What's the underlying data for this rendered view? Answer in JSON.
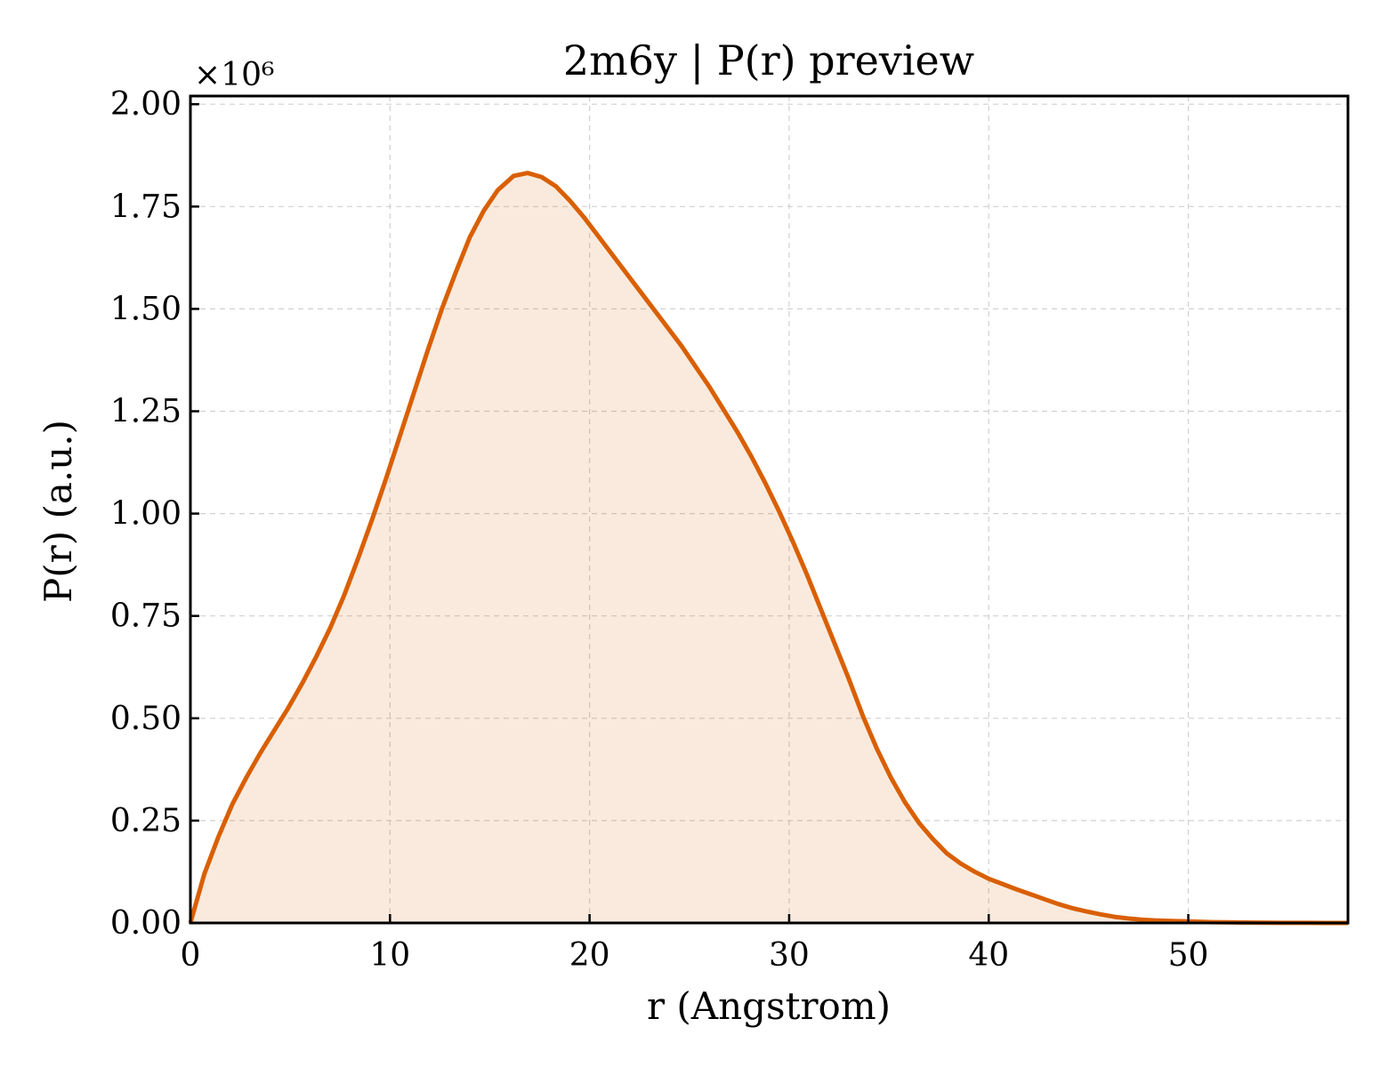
{
  "chart_data": {
    "type": "area",
    "title": "2m6y | P(r) preview",
    "xlabel": "r (Angstrom)",
    "ylabel": "P(r) (a.u.)",
    "y_offset_label": "×10⁶",
    "xlim": [
      0,
      58
    ],
    "ylim": [
      0,
      2.02
    ],
    "xticks": [
      0,
      10,
      20,
      30,
      40,
      50
    ],
    "xtick_labels": [
      "0",
      "10",
      "20",
      "30",
      "40",
      "50"
    ],
    "yticks": [
      0,
      0.25,
      0.5,
      0.75,
      1.0,
      1.25,
      1.5,
      1.75,
      2.0
    ],
    "ytick_labels": [
      "0.00",
      "0.25",
      "0.50",
      "0.75",
      "1.00",
      "1.25",
      "1.50",
      "1.75",
      "2.00"
    ],
    "grid": true,
    "line_color": "#d95f02",
    "fill_color": "#d95f02",
    "fill_opacity": 0.13,
    "series": [
      {
        "x": [
          0,
          0.7,
          1.4,
          2.1,
          2.8,
          3.5,
          4.2,
          4.9,
          5.6,
          6.3,
          7.0,
          7.7,
          8.4,
          9.1,
          9.8,
          10.5,
          11.2,
          11.9,
          12.6,
          13.3,
          14.0,
          14.7,
          15.4,
          16.2,
          16.9,
          17.6,
          18.3,
          19.0,
          19.7,
          20.4,
          21.1,
          21.8,
          22.5,
          23.2,
          23.9,
          24.6,
          25.3,
          26.0,
          26.7,
          27.4,
          28.1,
          28.8,
          29.5,
          30.2,
          30.9,
          31.6,
          32.3,
          33.0,
          33.7,
          34.4,
          35.1,
          35.8,
          36.5,
          37.2,
          37.9,
          38.6,
          39.3,
          40.0,
          40.7,
          41.4,
          42.1,
          42.8,
          43.5,
          44.2,
          44.9,
          45.6,
          46.3,
          47.0,
          47.7,
          48.4,
          49.1,
          49.8,
          50.5,
          51.2,
          51.9,
          52.6,
          53.3,
          54.0,
          54.7,
          55.4,
          56.1,
          56.8,
          57.5,
          58.0
        ],
        "y": [
          0.0,
          0.12,
          0.21,
          0.29,
          0.355,
          0.415,
          0.47,
          0.525,
          0.585,
          0.65,
          0.72,
          0.8,
          0.89,
          0.985,
          1.085,
          1.19,
          1.295,
          1.4,
          1.5,
          1.59,
          1.675,
          1.74,
          1.79,
          1.825,
          1.832,
          1.822,
          1.8,
          1.765,
          1.725,
          1.68,
          1.635,
          1.59,
          1.545,
          1.5,
          1.455,
          1.41,
          1.36,
          1.31,
          1.255,
          1.2,
          1.14,
          1.075,
          1.005,
          0.93,
          0.85,
          0.765,
          0.68,
          0.595,
          0.505,
          0.425,
          0.355,
          0.295,
          0.245,
          0.205,
          0.17,
          0.145,
          0.125,
          0.108,
          0.095,
          0.082,
          0.07,
          0.058,
          0.046,
          0.036,
          0.028,
          0.021,
          0.015,
          0.011,
          0.008,
          0.006,
          0.005,
          0.004,
          0.003,
          0.002,
          0.0015,
          0.001,
          0.0008,
          0.0005,
          0.0004,
          0.0003,
          0.0002,
          0.0001,
          0.0,
          0.0
        ]
      }
    ]
  }
}
